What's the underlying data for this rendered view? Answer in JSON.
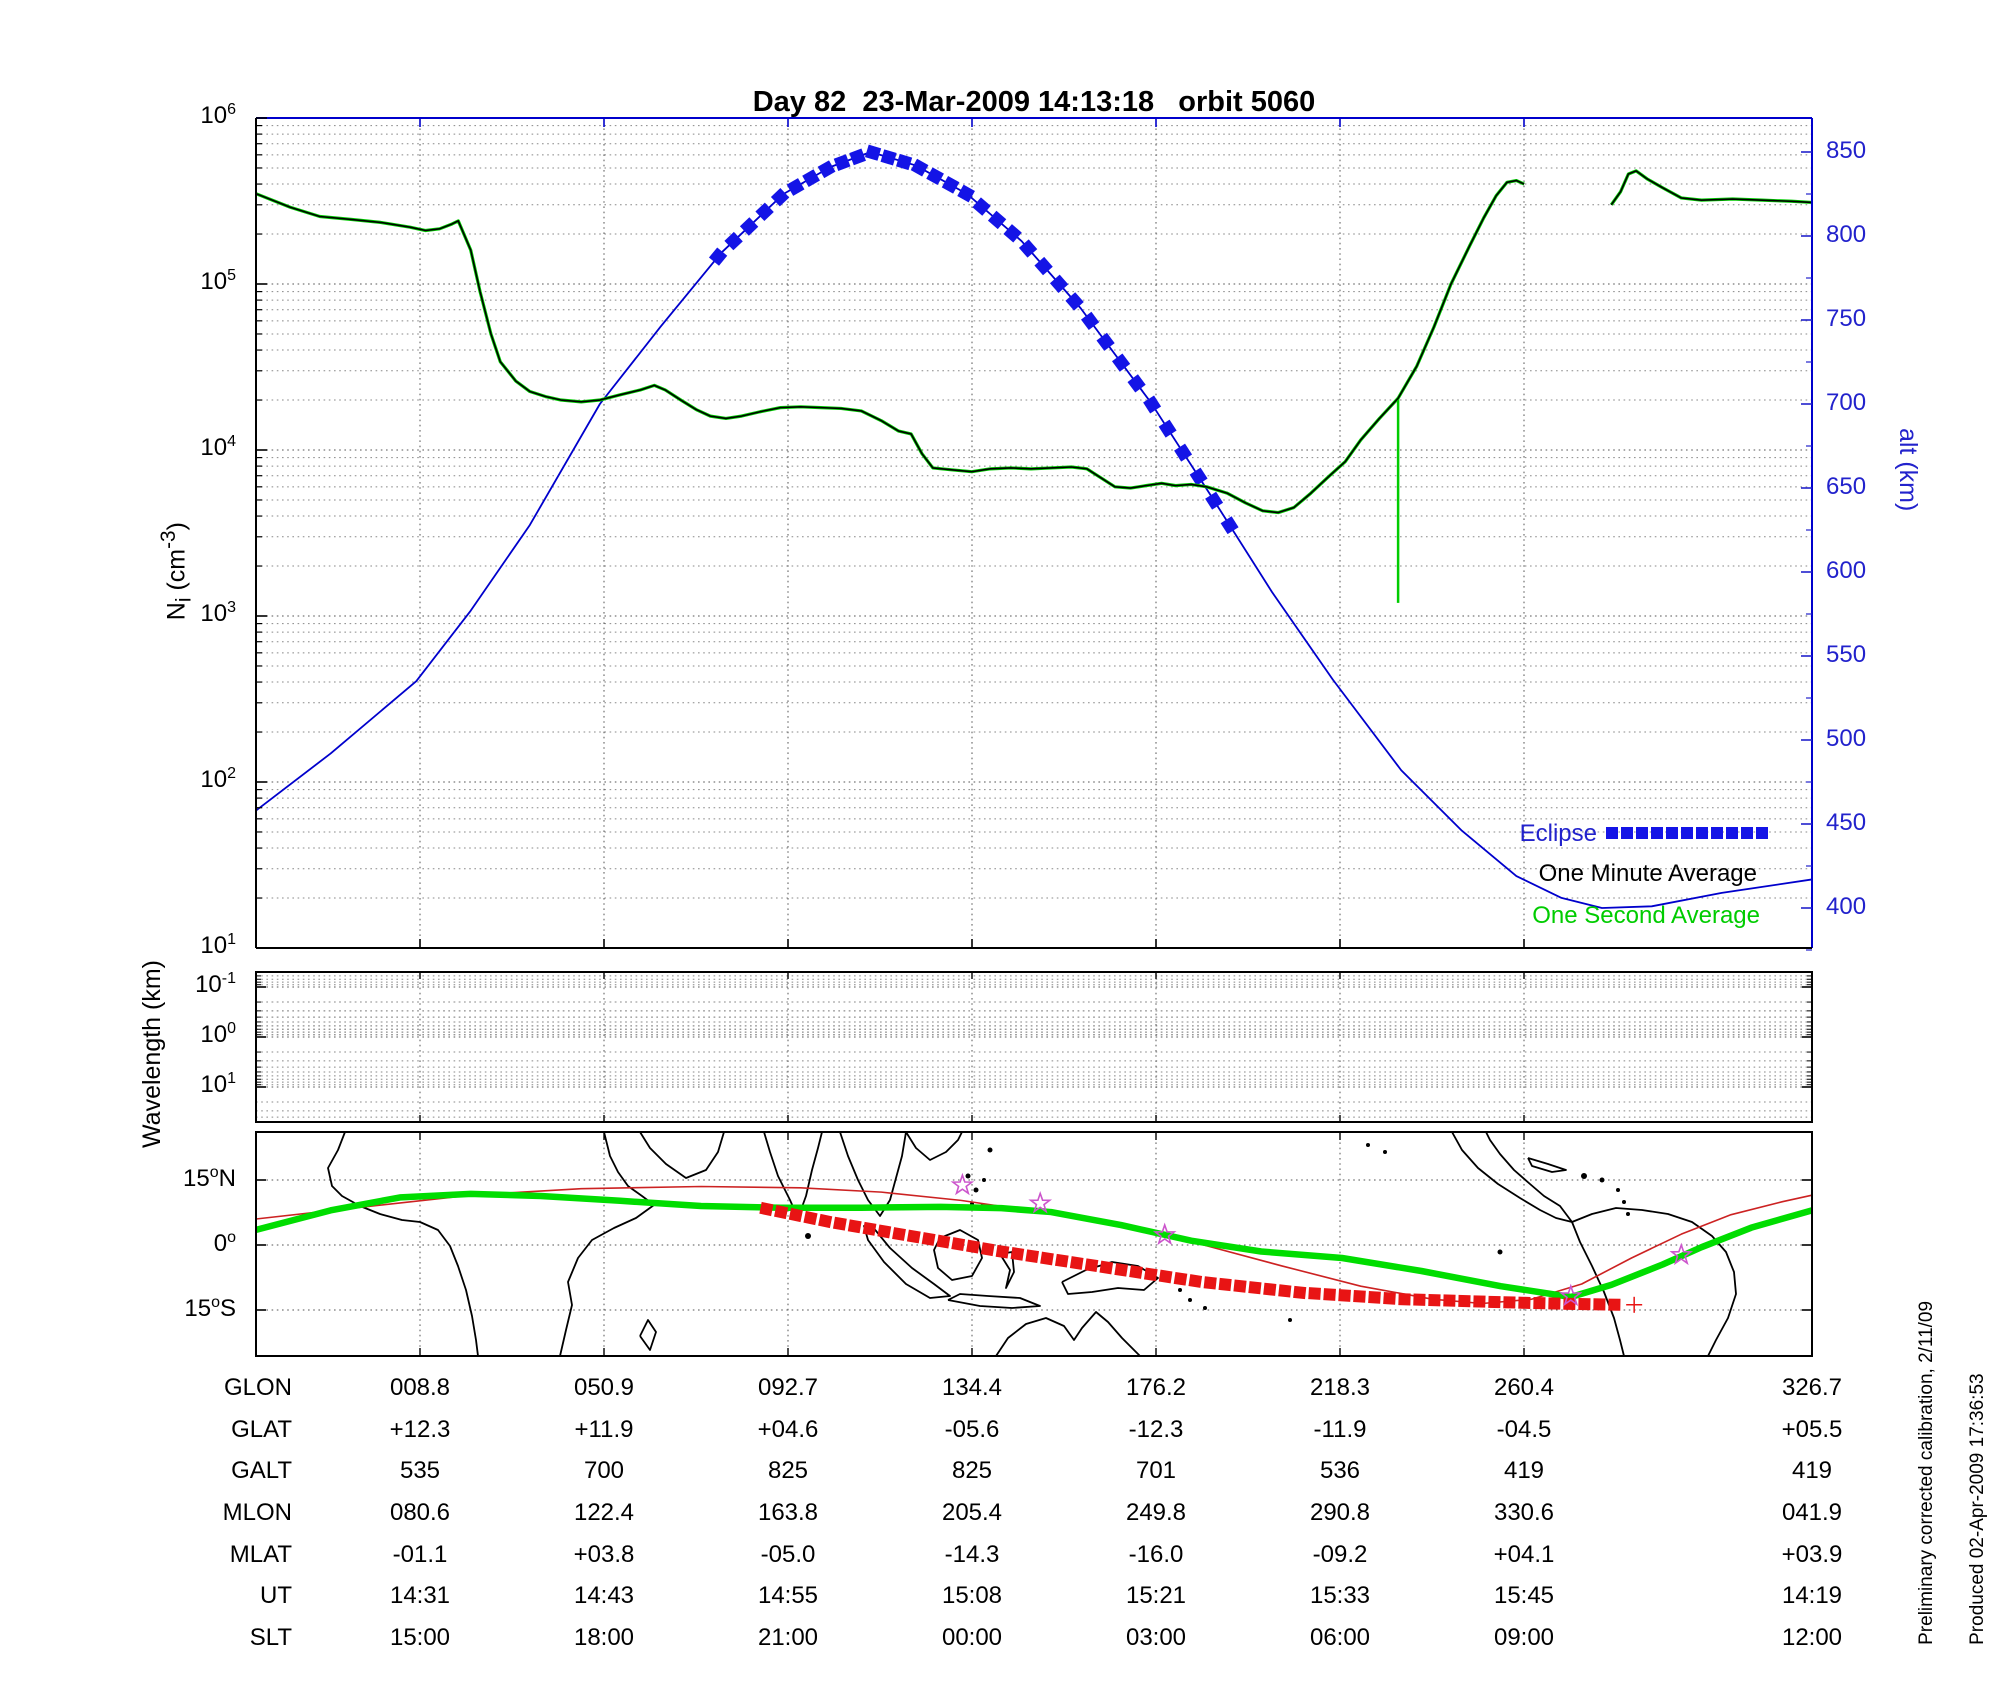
{
  "title": "Day 82  23-Mar-2009 14:13:18   orbit 5060",
  "colors": {
    "curve_blue": "#0000cc",
    "eclipse_blue": "#1414e6",
    "axis_blue": "#2222cc",
    "minute_black": "#000000",
    "second_green": "#00cc00",
    "map_green": "#00dd00",
    "map_red": "#cc2222",
    "map_eclipse_red": "#e81414",
    "star_magenta": "#cc55cc",
    "grid_gray": "#777777"
  },
  "axes": {
    "ni": {
      "label_pre": "N",
      "label_sub": "i",
      "label_mid": " (cm",
      "label_sup": "-3",
      "label_post": ")",
      "base": "10",
      "exponents": [
        6,
        5,
        4,
        3,
        2,
        1
      ]
    },
    "alt": {
      "label": "alt (km)",
      "ticks": [
        850,
        800,
        750,
        700,
        650,
        600,
        550,
        500,
        450,
        400
      ]
    },
    "wavelength": {
      "label": "Wavelength (km)",
      "base": "10",
      "exponents": [
        -1,
        0,
        1
      ]
    },
    "map": {
      "lat_ticks": [
        {
          "v": "15",
          "d": "o",
          "s": "N"
        },
        {
          "v": "0",
          "d": "o",
          "s": ""
        },
        {
          "v": "15",
          "d": "o",
          "s": "S"
        }
      ]
    }
  },
  "legend": [
    {
      "label": "Eclipse",
      "color": "#2222cc",
      "marker": "squares"
    },
    {
      "label": "One Minute Average",
      "color": "#000000",
      "marker": "none"
    },
    {
      "label": "One Second Average",
      "color": "#00cc00",
      "marker": "none"
    }
  ],
  "notes": {
    "line1": "Preliminary corrected calibration, 2/11/09",
    "line2": "Produced 02-Apr-2009 17:36:53"
  },
  "table": {
    "row_labels": [
      "GLON",
      "GLAT",
      "GALT",
      "MLON",
      "MLAT",
      "UT",
      "SLT"
    ],
    "rows": [
      [
        "008.8",
        "050.9",
        "092.7",
        "134.4",
        "176.2",
        "218.3",
        "260.4",
        "326.7"
      ],
      [
        "+12.3",
        "+11.9",
        "+04.6",
        "-05.6",
        "-12.3",
        "-11.9",
        "-04.5",
        "+05.5"
      ],
      [
        "535",
        "700",
        "825",
        "825",
        "701",
        "536",
        "419",
        "419"
      ],
      [
        "080.6",
        "122.4",
        "163.8",
        "205.4",
        "249.8",
        "290.8",
        "330.6",
        "041.9"
      ],
      [
        "-01.1",
        "+03.8",
        "-05.0",
        "-14.3",
        "-16.0",
        "-09.2",
        "+04.1",
        "+03.9"
      ],
      [
        "14:31",
        "14:43",
        "14:55",
        "15:08",
        "15:21",
        "15:33",
        "15:45",
        "14:19"
      ],
      [
        "15:00",
        "18:00",
        "21:00",
        "00:00",
        "03:00",
        "06:00",
        "09:00",
        "12:00"
      ]
    ]
  },
  "chart_data": [
    {
      "id": "ion_density_altitude",
      "type": "line",
      "title": "Day 82  23-Mar-2009 14:13:18   orbit 5060",
      "ylabel_left": "Ni (cm^-3)",
      "ylabel_right": "alt (km)",
      "y_left_scale": "log",
      "y_left_range": [
        10,
        1000000
      ],
      "y_right_range_km": [
        376,
        867
      ],
      "grid": "dotted",
      "legend_position": "lower right inside",
      "series": [
        {
          "name": "One Minute Average",
          "axis": "left",
          "color": "#000000",
          "points": [
            [
              0,
              350000
            ],
            [
              0.022,
              290000
            ],
            [
              0.041,
              255000
            ],
            [
              0.061,
              245000
            ],
            [
              0.08,
              235000
            ],
            [
              0.099,
              220000
            ],
            [
              0.109,
              210000
            ],
            [
              0.118,
              215000
            ],
            [
              0.126,
              230000
            ],
            [
              0.13,
              240000
            ],
            [
              0.138,
              160000
            ],
            [
              0.144,
              90000
            ],
            [
              0.151,
              50000
            ],
            [
              0.157,
              34000
            ],
            [
              0.167,
              26000
            ],
            [
              0.176,
              22500
            ],
            [
              0.186,
              21000
            ],
            [
              0.196,
              20000
            ],
            [
              0.209,
              19500
            ],
            [
              0.221,
              20000
            ],
            [
              0.234,
              21500
            ],
            [
              0.247,
              23000
            ],
            [
              0.256,
              24500
            ],
            [
              0.263,
              23000
            ],
            [
              0.273,
              20000
            ],
            [
              0.283,
              17500
            ],
            [
              0.292,
              16000
            ],
            [
              0.302,
              15500
            ],
            [
              0.312,
              16000
            ],
            [
              0.324,
              17000
            ],
            [
              0.337,
              18000
            ],
            [
              0.35,
              18200
            ],
            [
              0.363,
              18000
            ],
            [
              0.376,
              17800
            ],
            [
              0.389,
              17200
            ],
            [
              0.402,
              15000
            ],
            [
              0.413,
              13000
            ],
            [
              0.421,
              12500
            ],
            [
              0.428,
              9500
            ],
            [
              0.435,
              7800
            ],
            [
              0.447,
              7600
            ],
            [
              0.46,
              7400
            ],
            [
              0.472,
              7700
            ],
            [
              0.485,
              7800
            ],
            [
              0.498,
              7700
            ],
            [
              0.511,
              7800
            ],
            [
              0.524,
              7900
            ],
            [
              0.534,
              7700
            ],
            [
              0.543,
              6800
            ],
            [
              0.552,
              6000
            ],
            [
              0.562,
              5900
            ],
            [
              0.572,
              6100
            ],
            [
              0.582,
              6300
            ],
            [
              0.591,
              6100
            ],
            [
              0.601,
              6200
            ],
            [
              0.611,
              6000
            ],
            [
              0.624,
              5500
            ],
            [
              0.636,
              4800
            ],
            [
              0.647,
              4300
            ],
            [
              0.657,
              4200
            ],
            [
              0.667,
              4500
            ],
            [
              0.678,
              5500
            ],
            [
              0.69,
              7000
            ],
            [
              0.7,
              8500
            ],
            [
              0.71,
              11500
            ],
            [
              0.722,
              15500
            ],
            [
              0.734,
              20500
            ],
            [
              0.746,
              32000
            ],
            [
              0.757,
              55000
            ],
            [
              0.768,
              100000
            ],
            [
              0.78,
              170000
            ],
            [
              0.789,
              250000
            ],
            [
              0.797,
              340000
            ],
            [
              0.804,
              410000
            ],
            [
              0.81,
              420000
            ],
            [
              0.815,
              400000
            ]
          ],
          "points_segment2": [
            [
              0.871,
              300000
            ],
            [
              0.877,
              360000
            ],
            [
              0.882,
              460000
            ],
            [
              0.887,
              480000
            ],
            [
              0.894,
              430000
            ],
            [
              0.904,
              380000
            ],
            [
              0.916,
              330000
            ],
            [
              0.929,
              320000
            ],
            [
              0.949,
              325000
            ],
            [
              0.968,
              320000
            ],
            [
              0.987,
              315000
            ],
            [
              1,
              310000
            ]
          ]
        },
        {
          "name": "One Second Average",
          "axis": "left",
          "color": "#00cc00",
          "note": "nearly coincident with one-minute average, plus downward spike",
          "spike": {
            "x_frac": 0.734,
            "from": 20500,
            "to": 1200
          }
        },
        {
          "name": "alt",
          "axis": "right",
          "color": "#0000cc",
          "points": [
            [
              0,
              458
            ],
            [
              0.048,
              492
            ],
            [
              0.103,
              535
            ],
            [
              0.138,
              577
            ],
            [
              0.176,
              628
            ],
            [
              0.221,
              700
            ],
            [
              0.26,
              746
            ],
            [
              0.299,
              790
            ],
            [
              0.339,
              825
            ],
            [
              0.369,
              841
            ],
            [
              0.395,
              850
            ],
            [
              0.424,
              842
            ],
            [
              0.457,
              825
            ],
            [
              0.492,
              797
            ],
            [
              0.53,
              757
            ],
            [
              0.575,
              701
            ],
            [
              0.614,
              645
            ],
            [
              0.653,
              588
            ],
            [
              0.692,
              536
            ],
            [
              0.736,
              482
            ],
            [
              0.775,
              446
            ],
            [
              0.81,
              419
            ],
            [
              0.839,
              406
            ],
            [
              0.865,
              400
            ],
            [
              0.897,
              401
            ],
            [
              0.942,
              409
            ],
            [
              1,
              417
            ]
          ]
        },
        {
          "name": "Eclipse",
          "axis": "right",
          "color": "#1414e6",
          "style": "thick-dashed-overlay",
          "x_frac_span": [
            0.297,
            0.631
          ]
        }
      ]
    },
    {
      "id": "wavelength_panel",
      "type": "line",
      "ylabel": "Wavelength (km)",
      "y_scale": "log-inverted",
      "y_ticks": [
        0.1,
        1,
        10
      ],
      "grid": "dotted",
      "series": []
    },
    {
      "id": "ground_track_map",
      "type": "map",
      "y_ticks_lat": [
        15,
        0,
        -15
      ],
      "lat_range": [
        -26,
        26
      ],
      "series": [
        {
          "name": "green-ground-track",
          "color": "#00dd00",
          "width": 6,
          "points": [
            [
              0,
              3.5
            ],
            [
              0.048,
              8
            ],
            [
              0.093,
              11
            ],
            [
              0.138,
              11.8
            ],
            [
              0.183,
              11.3
            ],
            [
              0.234,
              10.2
            ],
            [
              0.286,
              9
            ],
            [
              0.337,
              8.6
            ],
            [
              0.389,
              8.6
            ],
            [
              0.44,
              8.8
            ],
            [
              0.479,
              8.5
            ],
            [
              0.511,
              7.6
            ],
            [
              0.556,
              4.6
            ],
            [
              0.601,
              1
            ],
            [
              0.646,
              -1.5
            ],
            [
              0.698,
              -3
            ],
            [
              0.749,
              -6
            ],
            [
              0.8,
              -9.5
            ],
            [
              0.845,
              -12
            ],
            [
              0.871,
              -9.2
            ],
            [
              0.904,
              -4.5
            ],
            [
              0.929,
              -0.5
            ],
            [
              0.961,
              4
            ],
            [
              1,
              8
            ]
          ]
        },
        {
          "name": "red-thin-track",
          "color": "#cc2222",
          "width": 1.5,
          "points": [
            [
              0,
              6
            ],
            [
              0.067,
              8.7
            ],
            [
              0.138,
              11.5
            ],
            [
              0.209,
              13
            ],
            [
              0.286,
              13.5
            ],
            [
              0.35,
              13.2
            ],
            [
              0.402,
              12.2
            ],
            [
              0.453,
              10.3
            ],
            [
              0.504,
              7.6
            ],
            [
              0.556,
              4.2
            ],
            [
              0.607,
              0.2
            ],
            [
              0.659,
              -4.8
            ],
            [
              0.71,
              -9.5
            ],
            [
              0.756,
              -12.5
            ],
            [
              0.788,
              -13.5
            ],
            [
              0.82,
              -12.5
            ],
            [
              0.852,
              -9
            ],
            [
              0.884,
              -3
            ],
            [
              0.916,
              2.5
            ],
            [
              0.948,
              7
            ],
            [
              0.981,
              10
            ],
            [
              1,
              11.5
            ]
          ]
        },
        {
          "name": "red-eclipse-dashes",
          "color": "#e81414",
          "style": "thick-dashed",
          "points": [
            [
              0.328,
              8.3
            ],
            [
              0.369,
              5.3
            ],
            [
              0.414,
              2.5
            ],
            [
              0.479,
              -1.5
            ],
            [
              0.543,
              -5
            ],
            [
              0.607,
              -8.5
            ],
            [
              0.672,
              -11
            ],
            [
              0.736,
              -12.5
            ],
            [
              0.8,
              -13.2
            ],
            [
              0.846,
              -13.6
            ],
            [
              0.878,
              -13.8
            ]
          ]
        },
        {
          "name": "stars",
          "color": "#cc55cc",
          "marker": "open-star",
          "points": [
            [
              0.454,
              13.8
            ],
            [
              0.504,
              9.6
            ],
            [
              0.584,
              2.3
            ],
            [
              0.845,
              -11.8
            ],
            [
              0.916,
              -2.3
            ]
          ]
        }
      ]
    }
  ]
}
